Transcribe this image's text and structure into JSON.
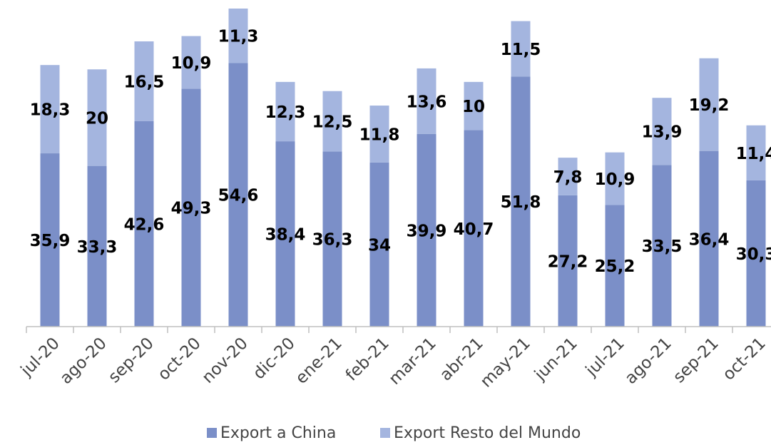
{
  "chart_data": {
    "type": "bar",
    "stacked": true,
    "categories": [
      "jul-20",
      "ago-20",
      "sep-20",
      "oct-20",
      "nov-20",
      "dic-20",
      "ene-21",
      "feb-21",
      "mar-21",
      "abr-21",
      "may-21",
      "jun-21",
      "jul-21",
      "ago-21",
      "sep-21",
      "oct-21"
    ],
    "series": [
      {
        "name": "Export a China",
        "color": "#7b8fc8",
        "values": [
          35.9,
          33.3,
          42.6,
          49.3,
          54.6,
          38.4,
          36.3,
          34,
          39.9,
          40.7,
          51.8,
          27.2,
          25.2,
          33.5,
          36.4,
          30.3
        ],
        "value_labels": [
          "35,9",
          "33,3",
          "42,6",
          "49,3",
          "54,6",
          "38,4",
          "36,3",
          "34",
          "39,9",
          "40,7",
          "51,8",
          "27,2",
          "25,2",
          "33,5",
          "36,4",
          "30,3"
        ]
      },
      {
        "name": "Export Resto del Mundo",
        "color": "#a4b5df",
        "values": [
          18.3,
          20,
          16.5,
          10.9,
          11.3,
          12.3,
          12.5,
          11.8,
          13.6,
          10,
          11.5,
          7.8,
          10.9,
          13.9,
          19.2,
          11.4
        ],
        "value_labels": [
          "18,3",
          "20",
          "16,5",
          "10,9",
          "11,3",
          "12,3",
          "12,5",
          "11,8",
          "13,6",
          "10",
          "11,5",
          "7,8",
          "10,9",
          "13,9",
          "19,2",
          "11,4"
        ]
      }
    ]
  }
}
